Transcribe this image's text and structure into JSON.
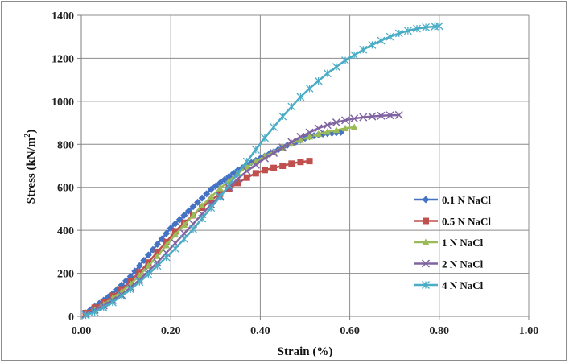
{
  "chart_data": {
    "type": "line",
    "xlabel": "Strain  (%)",
    "ylabel_main": "Stress  (kN/m",
    "ylabel_sup": "2",
    "ylabel_close": ")",
    "xlim": [
      0,
      1.0
    ],
    "ylim": [
      0,
      1400
    ],
    "x_ticks": [
      "0.00",
      "0.20",
      "0.40",
      "0.60",
      "0.80",
      "1.00"
    ],
    "x_tick_values": [
      0,
      0.2,
      0.4,
      0.6,
      0.8,
      1.0
    ],
    "y_ticks": [
      "0",
      "200",
      "400",
      "600",
      "800",
      "1000",
      "1200",
      "1400"
    ],
    "y_tick_values": [
      0,
      200,
      400,
      600,
      800,
      1000,
      1200,
      1400
    ],
    "grid": true,
    "legend_position": "right",
    "series": [
      {
        "name": "0.1 N NaCl",
        "color": "#4472C4",
        "marker": "diamond",
        "x": [
          0.01,
          0.02,
          0.03,
          0.04,
          0.05,
          0.06,
          0.07,
          0.08,
          0.09,
          0.1,
          0.11,
          0.12,
          0.13,
          0.14,
          0.15,
          0.16,
          0.17,
          0.18,
          0.19,
          0.2,
          0.21,
          0.22,
          0.23,
          0.24,
          0.25,
          0.26,
          0.27,
          0.28,
          0.29,
          0.3,
          0.31,
          0.32,
          0.33,
          0.34,
          0.35,
          0.36,
          0.37,
          0.38,
          0.39,
          0.4,
          0.41,
          0.42,
          0.43,
          0.44,
          0.45,
          0.46,
          0.47,
          0.48,
          0.49,
          0.5,
          0.51,
          0.52,
          0.53,
          0.54,
          0.55,
          0.56,
          0.57,
          0.58
        ],
        "y": [
          15,
          30,
          45,
          60,
          75,
          90,
          105,
          125,
          145,
          165,
          185,
          210,
          235,
          260,
          285,
          310,
          335,
          360,
          385,
          410,
          430,
          450,
          470,
          490,
          510,
          530,
          550,
          570,
          590,
          605,
          620,
          635,
          650,
          665,
          680,
          690,
          705,
          715,
          725,
          735,
          745,
          755,
          765,
          775,
          785,
          795,
          805,
          812,
          820,
          828,
          835,
          840,
          845,
          848,
          850,
          852,
          854,
          856
        ]
      },
      {
        "name": "0.5 N NaCl",
        "color": "#C0504D",
        "marker": "square",
        "x": [
          0.01,
          0.03,
          0.05,
          0.07,
          0.09,
          0.11,
          0.13,
          0.15,
          0.17,
          0.19,
          0.21,
          0.23,
          0.25,
          0.27,
          0.29,
          0.31,
          0.33,
          0.35,
          0.37,
          0.39,
          0.41,
          0.43,
          0.45,
          0.47,
          0.49,
          0.51
        ],
        "y": [
          15,
          40,
          65,
          95,
          125,
          165,
          205,
          250,
          300,
          345,
          395,
          435,
          470,
          505,
          540,
          570,
          595,
          620,
          645,
          665,
          680,
          690,
          700,
          710,
          718,
          722
        ]
      },
      {
        "name": "1 N NaCl",
        "color": "#9BBB59",
        "marker": "triangle",
        "x": [
          0.01,
          0.03,
          0.05,
          0.07,
          0.09,
          0.11,
          0.13,
          0.15,
          0.17,
          0.19,
          0.21,
          0.23,
          0.25,
          0.27,
          0.29,
          0.31,
          0.33,
          0.35,
          0.37,
          0.39,
          0.41,
          0.43,
          0.45,
          0.47,
          0.49,
          0.51,
          0.53,
          0.55,
          0.57,
          0.59,
          0.61
        ],
        "y": [
          10,
          30,
          55,
          85,
          115,
          150,
          190,
          235,
          280,
          330,
          380,
          425,
          470,
          515,
          555,
          595,
          630,
          665,
          695,
          720,
          745,
          765,
          785,
          805,
          820,
          835,
          848,
          858,
          866,
          874,
          880
        ]
      },
      {
        "name": "2 N NaCl",
        "color": "#8064A2",
        "marker": "x",
        "x": [
          0.01,
          0.03,
          0.05,
          0.07,
          0.09,
          0.11,
          0.13,
          0.15,
          0.17,
          0.19,
          0.21,
          0.23,
          0.25,
          0.27,
          0.29,
          0.31,
          0.33,
          0.35,
          0.37,
          0.39,
          0.41,
          0.43,
          0.45,
          0.47,
          0.49,
          0.51,
          0.53,
          0.55,
          0.57,
          0.59,
          0.61,
          0.63,
          0.65,
          0.67,
          0.69,
          0.71
        ],
        "y": [
          10,
          30,
          50,
          75,
          100,
          135,
          170,
          210,
          250,
          295,
          340,
          385,
          430,
          475,
          520,
          560,
          600,
          640,
          675,
          705,
          735,
          760,
          785,
          810,
          835,
          855,
          875,
          890,
          902,
          912,
          920,
          926,
          930,
          933,
          935,
          936
        ]
      },
      {
        "name": "4 N NaCl",
        "color": "#4BACC6",
        "marker": "star",
        "x": [
          0.01,
          0.03,
          0.05,
          0.07,
          0.09,
          0.11,
          0.13,
          0.15,
          0.17,
          0.19,
          0.21,
          0.23,
          0.25,
          0.27,
          0.29,
          0.31,
          0.33,
          0.35,
          0.37,
          0.39,
          0.41,
          0.43,
          0.45,
          0.47,
          0.49,
          0.51,
          0.53,
          0.55,
          0.57,
          0.59,
          0.61,
          0.63,
          0.65,
          0.67,
          0.69,
          0.71,
          0.73,
          0.75,
          0.77,
          0.79,
          0.8
        ],
        "y": [
          5,
          20,
          40,
          65,
          95,
          125,
          160,
          195,
          235,
          275,
          315,
          360,
          405,
          455,
          505,
          555,
          610,
          665,
          720,
          775,
          830,
          880,
          930,
          975,
          1020,
          1060,
          1095,
          1130,
          1160,
          1190,
          1215,
          1240,
          1262,
          1282,
          1300,
          1316,
          1328,
          1338,
          1344,
          1348,
          1350
        ]
      }
    ]
  }
}
